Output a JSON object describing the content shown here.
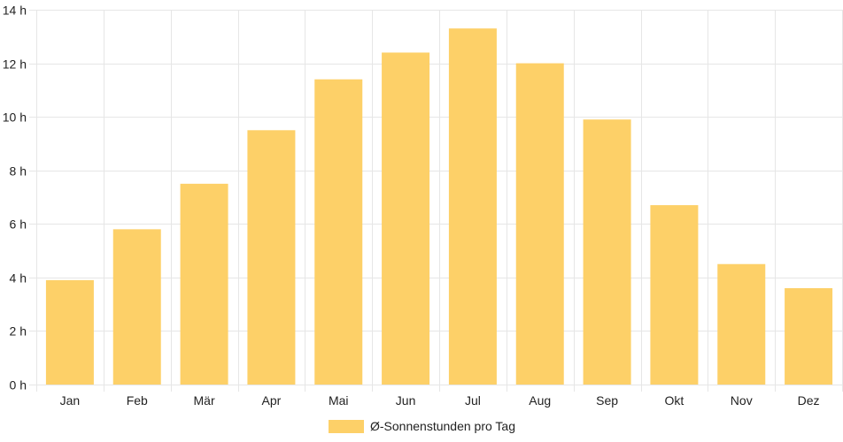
{
  "chart_data": {
    "type": "bar",
    "categories": [
      "Jan",
      "Feb",
      "Mär",
      "Apr",
      "Mai",
      "Jun",
      "Jul",
      "Aug",
      "Sep",
      "Okt",
      "Nov",
      "Dez"
    ],
    "series": [
      {
        "name": "Ø-Sonnenstunden pro Tag",
        "values": [
          3.9,
          5.8,
          7.5,
          9.5,
          11.4,
          12.4,
          13.3,
          12.0,
          9.9,
          6.7,
          4.5,
          3.6
        ]
      }
    ],
    "y_ticks": [
      "0 h",
      "2 h",
      "4 h",
      "6 h",
      "8 h",
      "10 h",
      "12 h",
      "14 h"
    ],
    "ylim": [
      0,
      14
    ],
    "grid": true,
    "legend_position": "bottom",
    "colors": {
      "bar_fill": "#fdd068",
      "grid": "#e6e6e6"
    }
  }
}
